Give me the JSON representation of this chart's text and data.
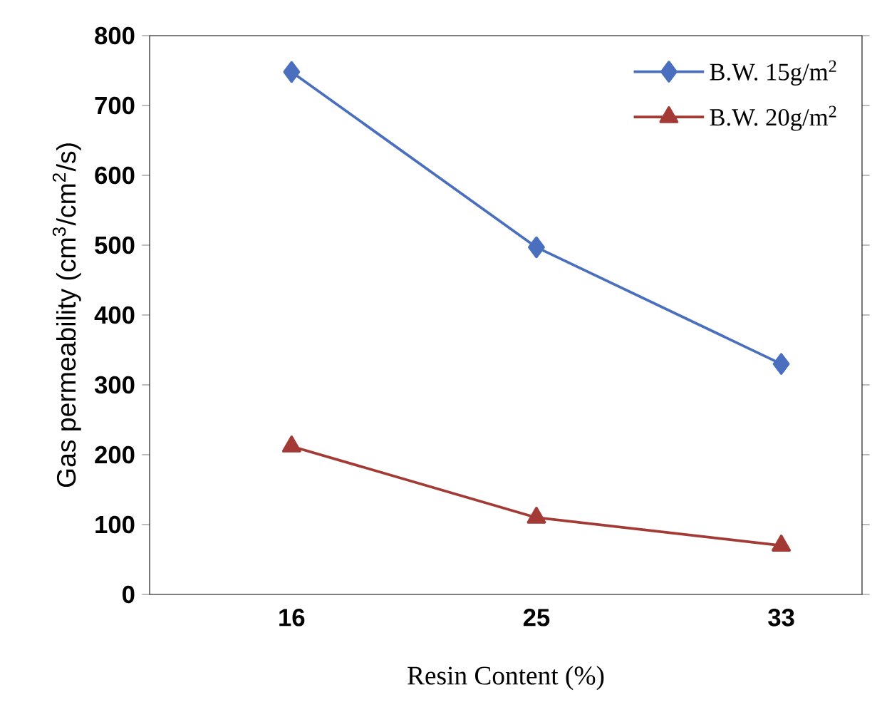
{
  "chart_data": {
    "type": "line",
    "xlabel": "Resin Content (%)",
    "ylabel": "Gas permeability (cm$^{3}$/cm$^{2}$/s)",
    "categories": [
      "16",
      "25",
      "33"
    ],
    "series": [
      {
        "name": "B.W. 15g/m$^{2}$",
        "color": "#4a6fbf",
        "marker": "diamond",
        "values": [
          748,
          497,
          330
        ]
      },
      {
        "name": "B.W. 20g/m$^{2}$",
        "color": "#a33a35",
        "marker": "triangle",
        "values": [
          212,
          110,
          70
        ]
      }
    ],
    "ylim": [
      0,
      800
    ],
    "yticks": [
      0,
      100,
      200,
      300,
      400,
      500,
      600,
      700,
      800
    ],
    "grid": false,
    "legend": "top right",
    "line_style": "solid"
  }
}
